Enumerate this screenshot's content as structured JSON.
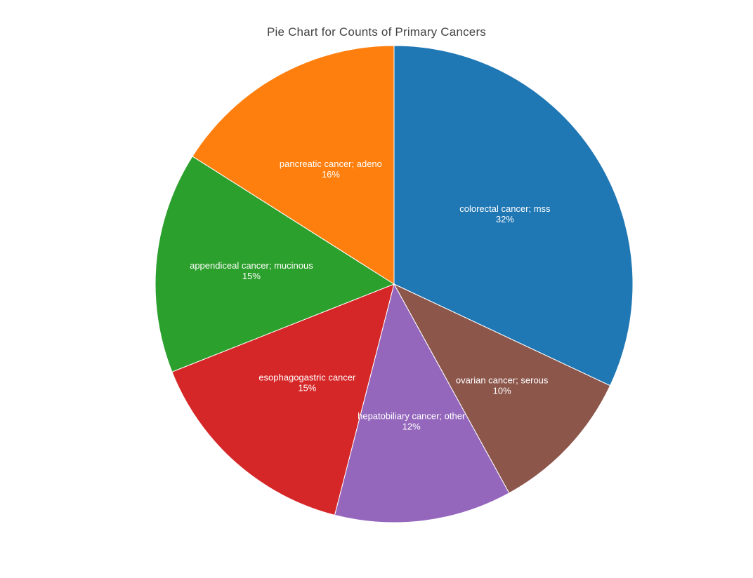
{
  "chart_data": {
    "type": "pie",
    "title": "Pie Chart for Counts of Primary Cancers",
    "slices": [
      {
        "label": "colorectal cancer; mss",
        "percent_label": "32%",
        "value": 32,
        "color": "#1f77b4"
      },
      {
        "label": "ovarian cancer; serous",
        "percent_label": "10%",
        "value": 10,
        "color": "#8c564b"
      },
      {
        "label": "hepatobiliary cancer; other",
        "percent_label": "12%",
        "value": 12,
        "color": "#9467bd"
      },
      {
        "label": "esophagogastric cancer",
        "percent_label": "15%",
        "value": 15,
        "color": "#d62728"
      },
      {
        "label": "appendiceal cancer; mucinous",
        "percent_label": "15%",
        "value": 15,
        "color": "#2ca02c"
      },
      {
        "label": "pancreatic cancer; adeno",
        "percent_label": "16%",
        "value": 16,
        "color": "#ff7f0e"
      }
    ],
    "direction": "clockwise",
    "start": "top",
    "legend": "none"
  }
}
